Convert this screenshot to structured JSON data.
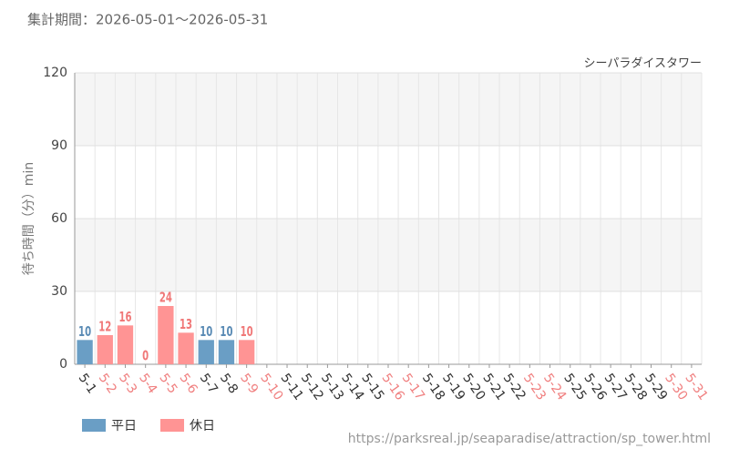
{
  "chart_data": {
    "type": "bar",
    "subtitle": "集計期間：2026-05-01～2026-05-31",
    "title": "シーパラダイスタワー",
    "y_label": "待ち時間（分）min",
    "source": "https://parksreal.jp/seaparadise/attraction/sp_tower.html",
    "categories": [
      "5-1",
      "5-2",
      "5-3",
      "5-4",
      "5-5",
      "5-6",
      "5-7",
      "5-8",
      "5-9",
      "5-10",
      "5-11",
      "5-12",
      "5-13",
      "5-14",
      "5-15",
      "5-16",
      "5-17",
      "5-18",
      "5-19",
      "5-20",
      "5-21",
      "5-22",
      "5-23",
      "5-24",
      "5-25",
      "5-26",
      "5-27",
      "5-28",
      "5-29",
      "5-30",
      "5-31"
    ],
    "category_colors": [
      "#333333",
      "#f08080",
      "#f08080",
      "#f08080",
      "#f08080",
      "#f08080",
      "#333333",
      "#333333",
      "#f08080",
      "#f08080",
      "#333333",
      "#333333",
      "#333333",
      "#333333",
      "#333333",
      "#f08080",
      "#f08080",
      "#333333",
      "#333333",
      "#333333",
      "#333333",
      "#333333",
      "#f08080",
      "#f08080",
      "#333333",
      "#333333",
      "#333333",
      "#333333",
      "#333333",
      "#f08080",
      "#f08080"
    ],
    "series": [
      {
        "name": "平日",
        "color": "#6a9ec5",
        "label_color": "#5a8bb5",
        "values": [
          10,
          null,
          null,
          null,
          null,
          null,
          10,
          10,
          null,
          null,
          null,
          null,
          null,
          null,
          null,
          null,
          null,
          null,
          null,
          null,
          null,
          null,
          null,
          null,
          null,
          null,
          null,
          null,
          null,
          null,
          null
        ]
      },
      {
        "name": "休日",
        "color": "#ff9494",
        "label_color": "#f07878",
        "values": [
          null,
          12,
          16,
          0,
          24,
          13,
          null,
          null,
          10,
          null,
          null,
          null,
          null,
          null,
          null,
          null,
          null,
          null,
          null,
          null,
          null,
          null,
          null,
          null,
          null,
          null,
          null,
          null,
          null,
          null,
          null
        ]
      }
    ],
    "ylim": [
      0,
      120
    ],
    "yticks": [
      0,
      30,
      60,
      90,
      120
    ],
    "grid": true
  }
}
